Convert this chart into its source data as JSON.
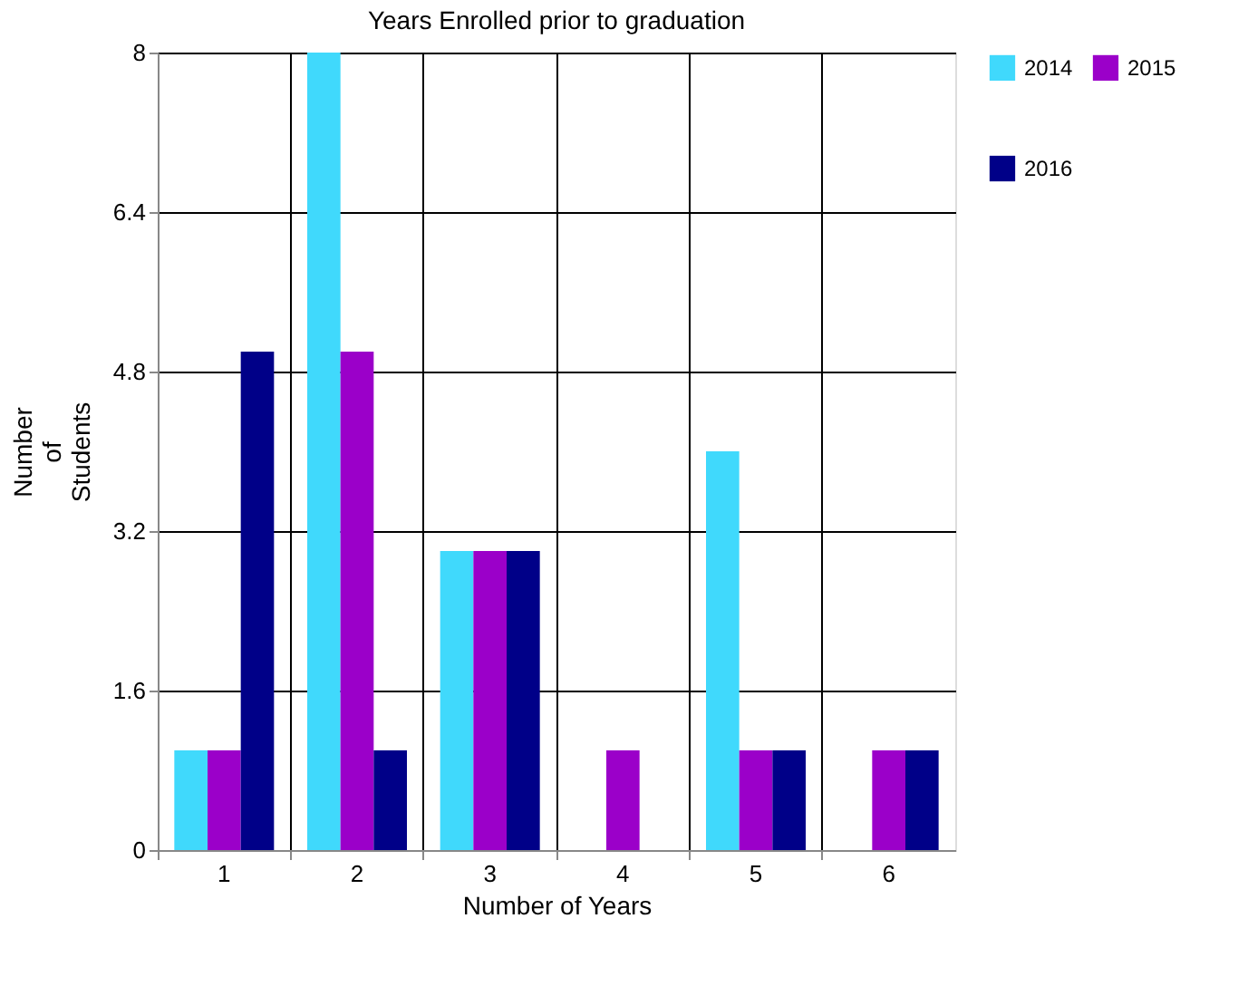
{
  "chart_data": {
    "type": "bar",
    "title": "Years Enrolled prior to graduation",
    "xlabel": "Number of Years",
    "ylabel": "Number of Students",
    "categories": [
      "1",
      "2",
      "3",
      "4",
      "5",
      "6"
    ],
    "series": [
      {
        "name": "2014",
        "color": "#40d9fc",
        "values": [
          1,
          8,
          3,
          0,
          4,
          0
        ]
      },
      {
        "name": "2015",
        "color": "#9b00c9",
        "values": [
          1,
          5,
          3,
          1,
          1,
          1
        ]
      },
      {
        "name": "2016",
        "color": "#000088",
        "values": [
          5,
          1,
          3,
          0,
          1,
          1
        ]
      }
    ],
    "ylim": [
      0,
      8
    ],
    "yticks": [
      0,
      1.6,
      3.2,
      4.8,
      6.4,
      8
    ],
    "grid": true,
    "legend": "right"
  }
}
